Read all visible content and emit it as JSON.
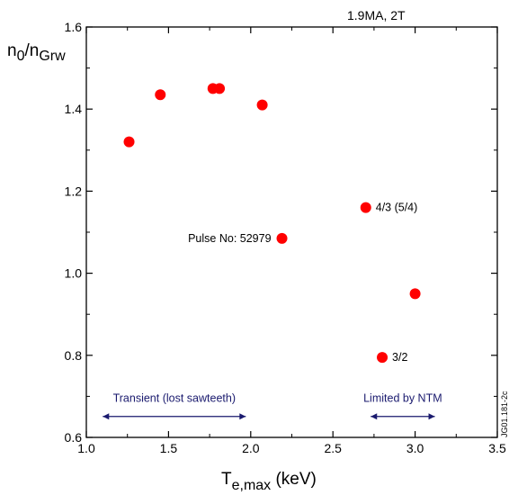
{
  "chart_data": {
    "type": "scatter",
    "title": "1.9MA,  2T",
    "ylabel_main": "n",
    "ylabel_sub1": "0",
    "ylabel_mid": "/n",
    "ylabel_sub2": "Grw",
    "xlabel_main": "T",
    "xlabel_sub": "e,max",
    "xlabel_unit": " (keV)",
    "xlim": [
      1.0,
      3.5
    ],
    "ylim": [
      0.6,
      1.6
    ],
    "xticks": [
      "1.0",
      "1.5",
      "2.0",
      "2.5",
      "3.0",
      "3.5"
    ],
    "yticks": [
      "0.6",
      "0.8",
      "1.0",
      "1.2",
      "1.4",
      "1.6"
    ],
    "grid": false,
    "marker_color": "#ff0000",
    "points": [
      {
        "x": 1.26,
        "y": 1.32
      },
      {
        "x": 1.45,
        "y": 1.435
      },
      {
        "x": 1.77,
        "y": 1.45
      },
      {
        "x": 1.81,
        "y": 1.45
      },
      {
        "x": 2.07,
        "y": 1.41
      },
      {
        "x": 2.19,
        "y": 1.085
      },
      {
        "x": 2.7,
        "y": 1.16
      },
      {
        "x": 3.0,
        "y": 0.95
      },
      {
        "x": 2.8,
        "y": 0.795
      }
    ],
    "annotations": [
      {
        "text": "Pulse No: 52979",
        "x": 2.19,
        "y": 1.085,
        "anchor": "end"
      },
      {
        "text": "4/3 (5/4)",
        "x": 2.7,
        "y": 1.16,
        "anchor": "start"
      },
      {
        "text": "3/2",
        "x": 2.8,
        "y": 0.795,
        "anchor": "start"
      }
    ],
    "ranges": [
      {
        "label": "Transient (lost sawteeth)",
        "x_start": 1.1,
        "x_end": 1.97,
        "y": 0.651,
        "color": "#1a1a6e"
      },
      {
        "label": "Limited by NTM",
        "x_start": 2.73,
        "x_end": 3.12,
        "y": 0.651,
        "color": "#1a1a6e"
      }
    ],
    "side_code": "JG01.181-2c"
  }
}
